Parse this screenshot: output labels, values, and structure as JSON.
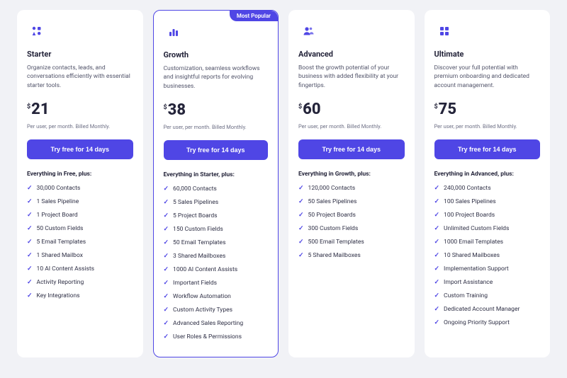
{
  "badge_label": "Most Popular",
  "currency_symbol": "$",
  "billing_text": "Per user, per month. Billed Monthly.",
  "cta_label": "Try free for 14 days",
  "accent_color": "#4f46e5",
  "plans": [
    {
      "id": "starter",
      "name": "Starter",
      "description": "Organize contacts, leads, and conversations efficiently with essential starter tools.",
      "price": "21",
      "highlight": false,
      "features_heading": "Everything in Free, plus:",
      "features": [
        "30,000 Contacts",
        "1 Sales Pipeline",
        "1 Project Board",
        "50 Custom Fields",
        "5 Email Templates",
        "1 Shared Mailbox",
        "10 AI Content Assists",
        "Activity Reporting",
        "Key Integrations"
      ]
    },
    {
      "id": "growth",
      "name": "Growth",
      "description": "Customization, seamless workflows and insightful reports for evolving businesses.",
      "price": "38",
      "highlight": true,
      "features_heading": "Everything in Starter, plus:",
      "features": [
        "60,000 Contacts",
        "5 Sales Pipelines",
        "5 Project Boards",
        "150 Custom Fields",
        "50 Email Templates",
        "3 Shared Mailboxes",
        "1000 AI Content Assists",
        "Important Fields",
        "Workflow Automation",
        "Custom Activity Types",
        "Advanced Sales Reporting",
        "User Roles & Permissions"
      ]
    },
    {
      "id": "advanced",
      "name": "Advanced",
      "description": "Boost the growth potential of your business with added flexibility at your fingertips.",
      "price": "60",
      "highlight": false,
      "features_heading": "Everything in Growth, plus:",
      "features": [
        "120,000 Contacts",
        "50 Sales Pipelines",
        "50 Project Boards",
        "300 Custom Fields",
        "500 Email Templates",
        "5 Shared Mailboxes"
      ]
    },
    {
      "id": "ultimate",
      "name": "Ultimate",
      "description": "Discover your full potential with premium onboarding and dedicated account management.",
      "price": "75",
      "highlight": false,
      "features_heading": "Everything in Advanced, plus:",
      "features": [
        "240,000 Contacts",
        "100 Sales Pipelines",
        "100 Project Boards",
        "Unlimited Custom Fields",
        "1000 Email Templates",
        "10 Shared Mailboxes",
        "Implementation Support",
        "Import Assistance",
        "Custom Training",
        "Dedicated Account Manager",
        "Ongoing Priority Support"
      ]
    }
  ]
}
